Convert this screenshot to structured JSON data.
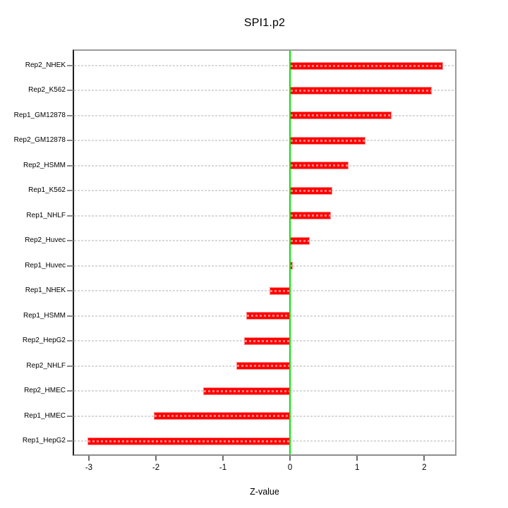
{
  "chart_data": {
    "type": "bar",
    "orientation": "horizontal",
    "title": "SPI1.p2",
    "xlabel": "Z-value",
    "ylabel": "",
    "categories": [
      "Rep2_NHEK",
      "Rep2_K562",
      "Rep1_GM12878",
      "Rep2_GM12878",
      "Rep2_HSMM",
      "Rep1_K562",
      "Rep1_NHLF",
      "Rep2_Huvec",
      "Rep1_Huvec",
      "Rep1_NHEK",
      "Rep1_HSMM",
      "Rep2_HepG2",
      "Rep2_NHLF",
      "Rep2_HMEC",
      "Rep1_HMEC",
      "Rep1_HepG2"
    ],
    "values": [
      2.28,
      2.11,
      1.51,
      1.12,
      0.87,
      0.63,
      0.61,
      0.29,
      0.04,
      -0.31,
      -0.65,
      -0.69,
      -0.8,
      -1.29,
      -2.03,
      -3.02
    ],
    "xticks": [
      -3,
      -2,
      -1,
      0,
      1,
      2
    ],
    "xlim": [
      -3.22,
      2.46
    ],
    "grid": "horizontal-dashed-per-category",
    "legend_position": "none",
    "bar_color": "#ff0000",
    "bar_edge_color": "#ff8f8f",
    "zero_line_color": "#00e800",
    "grid_color": "#d8d8d8"
  }
}
